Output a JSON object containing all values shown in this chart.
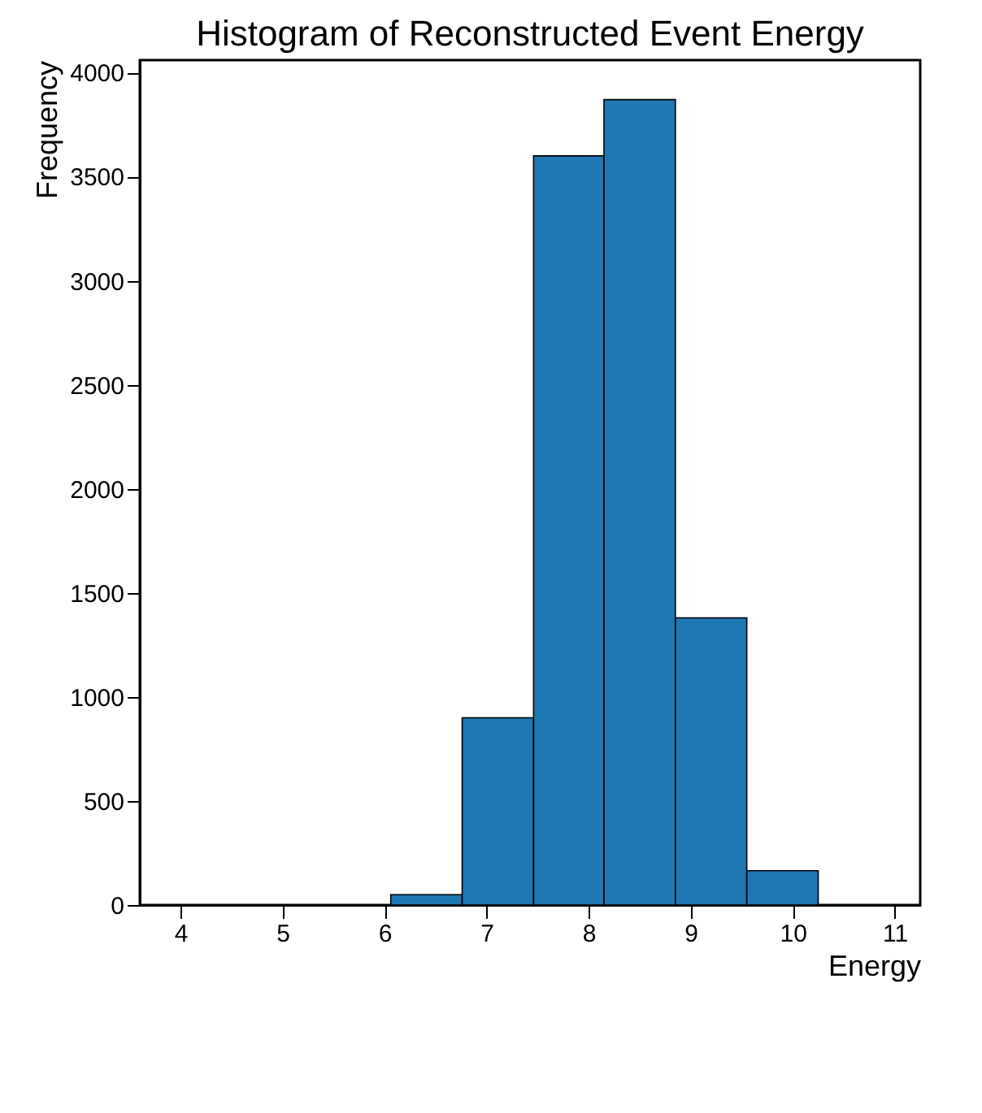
{
  "chart_data": {
    "type": "histogram",
    "title": "Histogram of Reconstructed Event Energy",
    "xlabel": "Energy",
    "ylabel": "Frequency",
    "bins": [
      6.06,
      6.76,
      7.46,
      8.15,
      8.85,
      9.55,
      10.25
    ],
    "values": [
      50,
      900,
      3600,
      3870,
      1380,
      165
    ],
    "color": "#1f77b4",
    "xlim": [
      3.6,
      11.25
    ],
    "xticks": [
      4,
      5,
      6,
      7,
      8,
      9,
      10,
      11
    ],
    "ylim": [
      0,
      4060
    ],
    "yticks": [
      0,
      500,
      1000,
      1500,
      2000,
      2500,
      3000,
      3500,
      4000
    ],
    "grid": false
  }
}
